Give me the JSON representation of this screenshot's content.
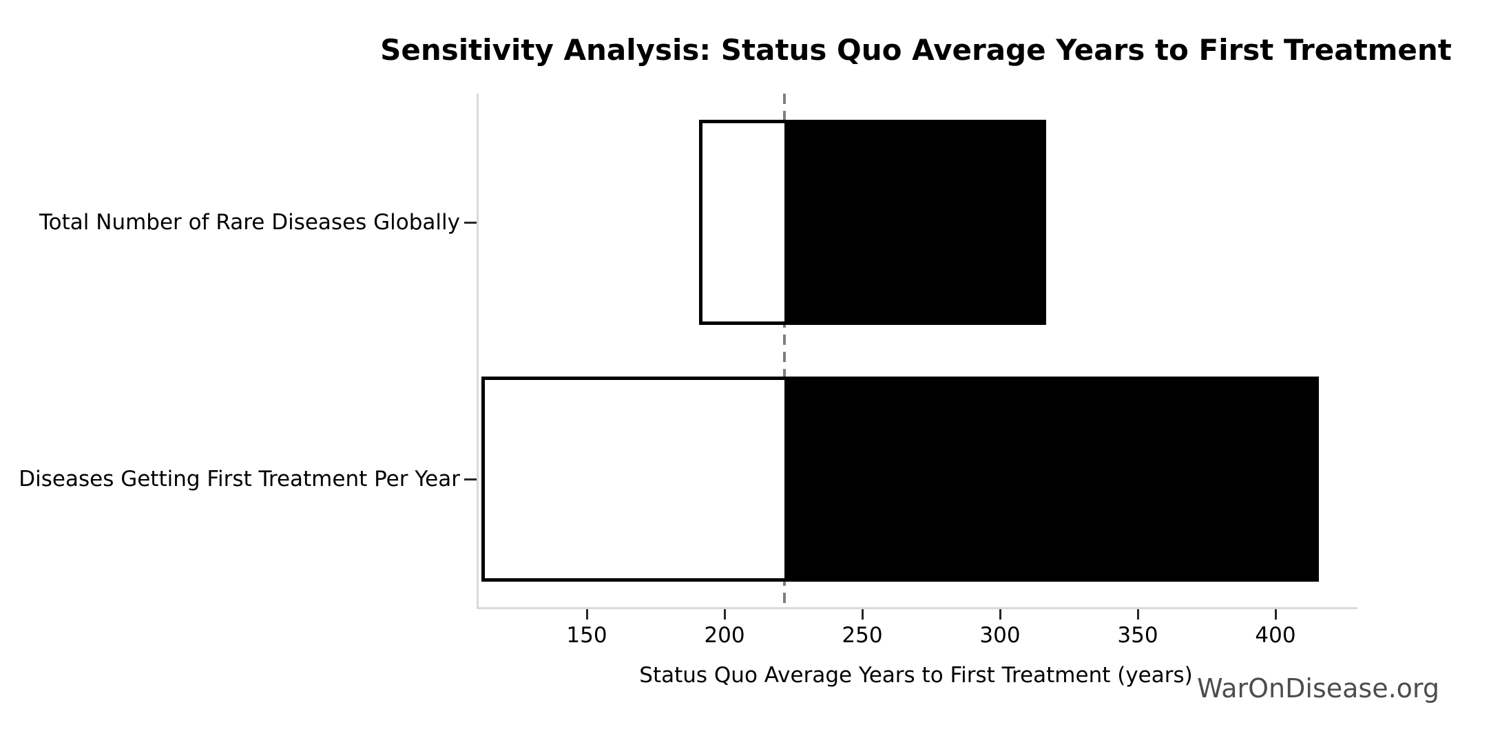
{
  "chart_data": {
    "type": "bar",
    "subtype": "tornado-sensitivity",
    "orientation": "horizontal",
    "title": "Sensitivity Analysis: Status Quo Average Years to First Treatment",
    "xlabel": "Status Quo Average Years to First Treatment (years)",
    "watermark": "WarOnDisease.org",
    "baseline_value": 221,
    "xlim": [
      110,
      429
    ],
    "xticks": [
      150,
      200,
      250,
      300,
      350,
      400
    ],
    "grid": "off",
    "legend": "none",
    "bars": [
      {
        "category": "Total Number of Rare Diseases Globally",
        "low": 190,
        "high": 316
      },
      {
        "category": "Diseases Getting First Treatment Per Year",
        "low": 111,
        "high": 415
      }
    ],
    "colors": {
      "background": "#ffffff",
      "bar_high_fill": "#000000",
      "bar_low_fill": "#ffffff",
      "bar_edge": "#000000",
      "baseline_line": "#7f7f7f",
      "spine": "#d9d9d9",
      "tick": "#262626",
      "text": "#000000",
      "watermark": "#4d4d4d"
    }
  }
}
